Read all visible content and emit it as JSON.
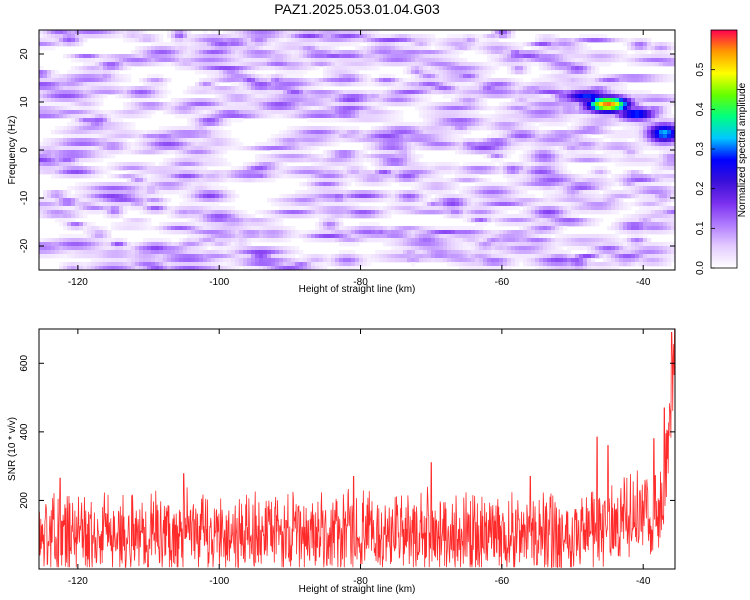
{
  "figure": {
    "title": "PAZ1.2025.053.01.04.G03"
  },
  "chart_data": [
    {
      "type": "heatmap",
      "panel": "spectrogram",
      "xlabel": "Height of straight line (km)",
      "ylabel": "Frequency (Hz)",
      "xlim": [
        -125.5,
        -35.5
      ],
      "ylim": [
        -25,
        25
      ],
      "x_ticks": [
        -120,
        -100,
        -80,
        -60,
        -40
      ],
      "y_ticks": [
        -20,
        -10,
        0,
        10,
        20
      ],
      "colorbar": {
        "label": "Normalized spectral amplitude",
        "range": [
          0,
          0.6
        ],
        "ticks": [
          "0.0",
          "0.1",
          "0.2",
          "0.3",
          "0.4",
          "0.5"
        ],
        "colors": [
          "#ffffff",
          "#e4ccff",
          "#b07cff",
          "#7a2fef",
          "#3a10d9",
          "#0000ff",
          "#00c8ff",
          "#00ff80",
          "#66ff00",
          "#ffff00",
          "#ff9900",
          "#ff0050"
        ]
      },
      "peaks": [
        {
          "x": -45,
          "y": 9.5,
          "value": 0.55,
          "sx": 2.2,
          "sy": 1.2
        },
        {
          "x": -48,
          "y": 11.2,
          "value": 0.28,
          "sx": 2.5,
          "sy": 1.0
        },
        {
          "x": -37,
          "y": 3.5,
          "value": 0.32,
          "sx": 1.8,
          "sy": 1.5
        },
        {
          "x": -41,
          "y": 7.5,
          "value": 0.3,
          "sx": 2.0,
          "sy": 1.0
        },
        {
          "x": -94,
          "y": 13.5,
          "value": 0.14,
          "sx": 1.6,
          "sy": 0.9
        },
        {
          "x": -111,
          "y": 12,
          "value": 0.13,
          "sx": 1.8,
          "sy": 0.8
        },
        {
          "x": -100,
          "y": -14,
          "value": 0.14,
          "sx": 2.0,
          "sy": 1.0
        },
        {
          "x": -67,
          "y": -11,
          "value": 0.15,
          "sx": 1.6,
          "sy": 0.9
        },
        {
          "x": -54,
          "y": -1.5,
          "value": 0.13,
          "sx": 1.6,
          "sy": 0.9
        }
      ]
    },
    {
      "type": "line",
      "panel": "snr",
      "xlabel": "Height of straight line (km)",
      "ylabel": "SNR (10 * v/v)",
      "xlim": [
        -125.5,
        -35.5
      ],
      "ylim": [
        0,
        700
      ],
      "x_ticks": [
        -120,
        -100,
        -80,
        -60,
        -40
      ],
      "y_ticks": [
        200,
        400,
        600
      ],
      "series": [
        {
          "color": "#ff2a2a",
          "baseline": 100,
          "noise_amplitude": 110,
          "min_value": 5,
          "spikes": [
            {
              "x": -122.5,
              "value": 265
            },
            {
              "x": -105,
              "value": 278
            },
            {
              "x": -81,
              "value": 270
            },
            {
              "x": -70,
              "value": 310
            },
            {
              "x": -56,
              "value": 270
            },
            {
              "x": -46.5,
              "value": 385
            },
            {
              "x": -45,
              "value": 360
            },
            {
              "x": -38.5,
              "value": 380
            },
            {
              "x": -37,
              "value": 470
            },
            {
              "x": -36,
              "value": 690
            }
          ],
          "end_rise": {
            "start": -39,
            "end": -35.5,
            "start_value": 120,
            "end_value": 620
          }
        }
      ]
    }
  ]
}
